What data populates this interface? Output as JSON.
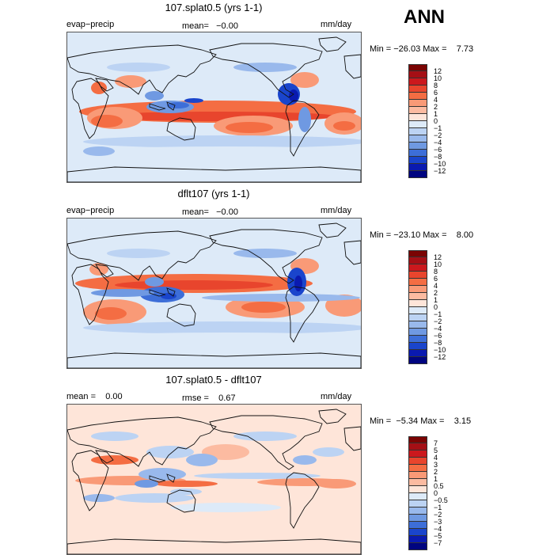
{
  "season": "ANN",
  "chart_data": [
    {
      "type": "heatmap",
      "title": "107.splat0.5 (yrs 1-1)",
      "left_label": "evap−precip",
      "center_label": "mean=   −0.00",
      "units": "mm/day",
      "stats": "Min = −26.03 Max =    7.73",
      "colorbar_levels": [
        "12",
        "10",
        "8",
        "6",
        "4",
        "2",
        "1",
        "0",
        "−1",
        "−2",
        "−4",
        "−6",
        "−8",
        "−10",
        "−12"
      ],
      "colorbar_colors": [
        "#7a0403",
        "#a50f15",
        "#cb181d",
        "#e8452d",
        "#f46d43",
        "#f99a77",
        "#fcbba1",
        "#fee5d9",
        "#ddeaf8",
        "#bcd3f3",
        "#99b9ec",
        "#6f99e2",
        "#3d6ed8",
        "#1a45cc",
        "#0a1ab0",
        "#000580"
      ],
      "data_range": [
        -26.03,
        7.73
      ]
    },
    {
      "type": "heatmap",
      "title": "dflt107 (yrs 1-1)",
      "left_label": "evap−precip",
      "center_label": "mean=   −0.00",
      "units": "mm/day",
      "stats": "Min = −23.10 Max =    8.00",
      "colorbar_levels": [
        "12",
        "10",
        "8",
        "6",
        "4",
        "2",
        "1",
        "0",
        "−1",
        "−2",
        "−4",
        "−6",
        "−8",
        "−10",
        "−12"
      ],
      "colorbar_colors": [
        "#7a0403",
        "#a50f15",
        "#cb181d",
        "#e8452d",
        "#f46d43",
        "#f99a77",
        "#fcbba1",
        "#fee5d9",
        "#ddeaf8",
        "#bcd3f3",
        "#99b9ec",
        "#6f99e2",
        "#3d6ed8",
        "#1a45cc",
        "#0a1ab0",
        "#000580"
      ],
      "data_range": [
        -23.1,
        8.0
      ]
    },
    {
      "type": "heatmap",
      "title": "107.splat0.5 - dflt107",
      "left_label": "mean =    0.00",
      "center_label": "rmse =    0.67",
      "units": "mm/day",
      "stats": "Min =  −5.34 Max =    3.15",
      "colorbar_levels": [
        "7",
        "5",
        "4",
        "3",
        "2",
        "1",
        "0.5",
        "0",
        "−0.5",
        "−1",
        "−2",
        "−3",
        "−4",
        "−5",
        "−7"
      ],
      "colorbar_colors": [
        "#7a0403",
        "#a50f15",
        "#cb181d",
        "#e8452d",
        "#f46d43",
        "#f99a77",
        "#fcbba1",
        "#fee5d9",
        "#ddeaf8",
        "#bcd3f3",
        "#99b9ec",
        "#6f99e2",
        "#3d6ed8",
        "#1a45cc",
        "#0a1ab0",
        "#000580"
      ],
      "data_range": [
        -5.34,
        3.15
      ]
    }
  ]
}
